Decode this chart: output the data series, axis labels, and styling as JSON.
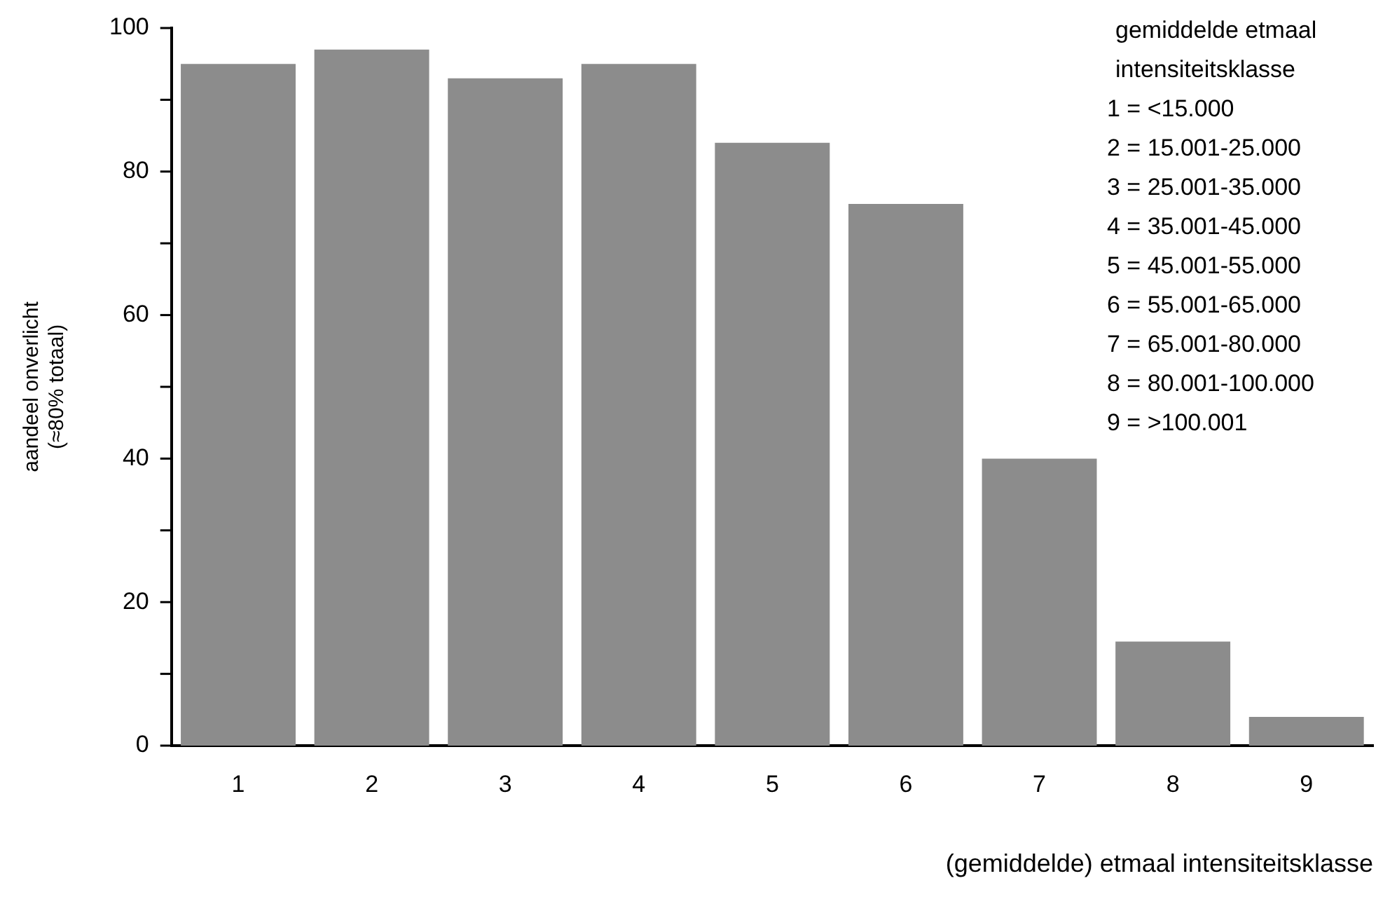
{
  "chart_data": {
    "type": "bar",
    "categories": [
      "1",
      "2",
      "3",
      "4",
      "5",
      "6",
      "7",
      "8",
      "9"
    ],
    "values": [
      95,
      97,
      93,
      95,
      84,
      75.5,
      40,
      14.5,
      4
    ],
    "color": "#8c8c8c",
    "xlabel": "(gemiddelde) etmaal intensiteitsklasse",
    "ylabel": "aandeel onverlicht\n(≈80% totaal)",
    "ylim": [
      0,
      100
    ],
    "yticks": [
      0,
      {
        "value": 10,
        "label": null
      },
      20,
      {
        "value": 30,
        "label": null
      },
      40,
      {
        "value": 50,
        "label": null
      },
      60,
      {
        "value": 70,
        "label": null
      },
      80,
      {
        "value": 90,
        "label": null
      },
      100
    ],
    "annotations": [
      "gemiddelde etmaal\nintensiteitsklasse",
      "1 = <15.000",
      "2 = 15.001-25.000",
      "3 = 25.001-35.000",
      "4 = 35.001-45.000",
      "5 = 45.001-55.000",
      "6 = 55.001-65.000",
      "7 = 65.001-80.000",
      "8 = 80.001-100.000",
      "9 = >100.001"
    ],
    "grid": false,
    "legend": false
  }
}
